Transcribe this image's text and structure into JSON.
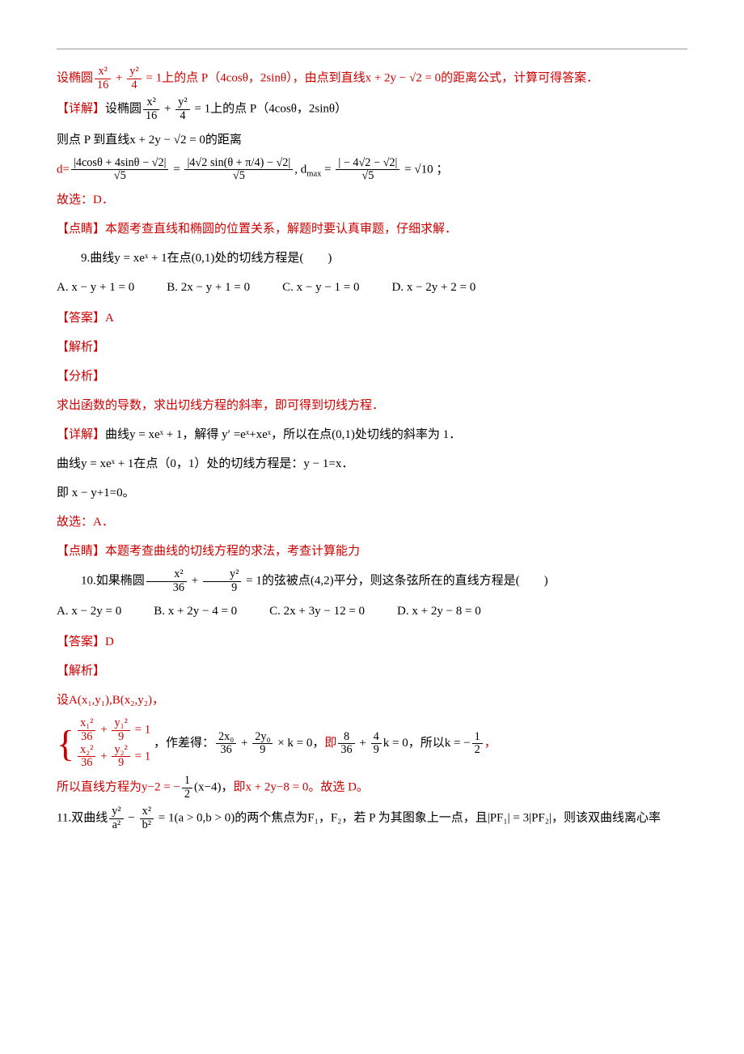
{
  "line1_a": "设椭圆",
  "line1_frac1_num": "x²",
  "line1_frac1_den": "16",
  "line1_plus": " + ",
  "line1_frac2_num": "y²",
  "line1_frac2_den": "4",
  "line1_b": " = 1上的点 P（4cosθ，2sinθ），由点到直线x + 2y − √2 = 0的距离公式，计算可得答案．",
  "line2_label": "【详解】",
  "line2_a": "设椭圆",
  "line2_frac1_num": "x²",
  "line2_frac1_den": "16",
  "line2_frac2_num": "y²",
  "line2_frac2_den": "4",
  "line2_b": " = 1上的点 P（4cosθ，2sinθ）",
  "line3": "则点 P 到直线x + 2y − √2 = 0的距离",
  "line4_d": "d=",
  "line4_f1_num": "|4cosθ + 4sinθ − √2|",
  "line4_f1_den": "√5",
  "line4_eq1": " = ",
  "line4_f2_num": "|4√2 sin(θ + π/4) − √2|",
  "line4_f2_den": "√5",
  "line4_mid": ", d",
  "line4_max": "max",
  "line4_eq2": " = ",
  "line4_f3_num": "| − 4√2 − √2|",
  "line4_f3_den": "√5",
  "line4_tail": " = √10 ；",
  "line5": "故选：D．",
  "line6": "【点睛】本题考查直线和椭圆的位置关系，解题时要认真审题，仔细求解．",
  "q9": "9.曲线y = xeˣ + 1在点(0,1)处的切线方程是(　　)",
  "q9_A": "A.  x − y + 1 = 0",
  "q9_B": "B.  2x − y + 1 = 0",
  "q9_C": "C.  x − y − 1 = 0",
  "q9_D": "D.  x − 2y + 2 = 0",
  "q9_ans": "【答案】A",
  "q9_jiexi": "【解析】",
  "q9_fenxi": "【分析】",
  "q9_fenxi_body": "求出函数的导数，求出切线方程的斜率，即可得到切线方程．",
  "q9_xj_label": "【详解】",
  "q9_xj_body": "曲线y = xeˣ + 1，解得 y′ =eˣ+xeˣ，所以在点(0,1)处切线的斜率为 1．",
  "q9_xj_body2": "曲线y = xeˣ + 1在点（0，1）处的切线方程是：y − 1=x．",
  "q9_xj_body3": "即 x − y+1=0。",
  "q9_sel": "故选：A．",
  "q9_dj": "【点睛】本题考查曲线的切线方程的求法，考查计算能力",
  "q10_a": "10.如果椭圆",
  "q10_f1_num": "x²",
  "q10_f1_den": "36",
  "q10_plus": " + ",
  "q10_f2_num": "y²",
  "q10_f2_den": "9",
  "q10_b": " = 1的弦被点(4,2)平分，则这条弦所在的直线方程是(　　)",
  "q10_A": "A.  x − 2y = 0",
  "q10_B": "B.  x + 2y − 4 = 0",
  "q10_C": "C.  2x + 3y − 12 = 0",
  "q10_D": "D.  x + 2y − 8 = 0",
  "q10_ans": "【答案】D",
  "q10_jiexi": "【解析】",
  "q10_set": "设A(x₁,y₁),B(x₂,y₂)，",
  "q10_brace_row1_a_num": "x₁²",
  "q10_brace_row1_a_den": "36",
  "q10_brace_row1_b_num": "y₁²",
  "q10_brace_row1_b_den": "9",
  "q10_brace_row2_a_num": "x₂²",
  "q10_brace_row2_a_den": "36",
  "q10_brace_row2_b_num": "y₂²",
  "q10_brace_row2_b_den": "9",
  "q10_brace_eq": " = 1",
  "q10_diff_a": "，作差得：",
  "q10_diff_f1_num": "2x₀",
  "q10_diff_f1_den": "36",
  "q10_diff_plus": " + ",
  "q10_diff_f2_num": "2y₀",
  "q10_diff_f2_den": "9",
  "q10_diff_b": " × k = 0，",
  "q10_diff_ji": "即",
  "q10_diff_f3_num": "8",
  "q10_diff_f3_den": "36",
  "q10_diff_f4_num": "4",
  "q10_diff_f4_den": "9",
  "q10_diff_c": "k = 0，所以k = −",
  "q10_diff_half_num": "1",
  "q10_diff_half_den": "2",
  "q10_diff_tail": "，",
  "q10_line_a": "所以直线方程为y−2 = −",
  "q10_line_f_num": "1",
  "q10_line_f_den": "2",
  "q10_line_b": "(x−4)，",
  "q10_line_c": "即x + 2y−8 = 0。故选 D。",
  "q11_a": "11.双曲线",
  "q11_f1_num": "y²",
  "q11_f1_den": "a²",
  "q11_minus": " − ",
  "q11_f2_num": "x²",
  "q11_f2_den": "b²",
  "q11_b": " = 1(a > 0,b > 0)的两个焦点为F₁，F₂，若 P 为其图象上一点，且|PF₁| = 3|PF₂|，则该双曲线离心率"
}
